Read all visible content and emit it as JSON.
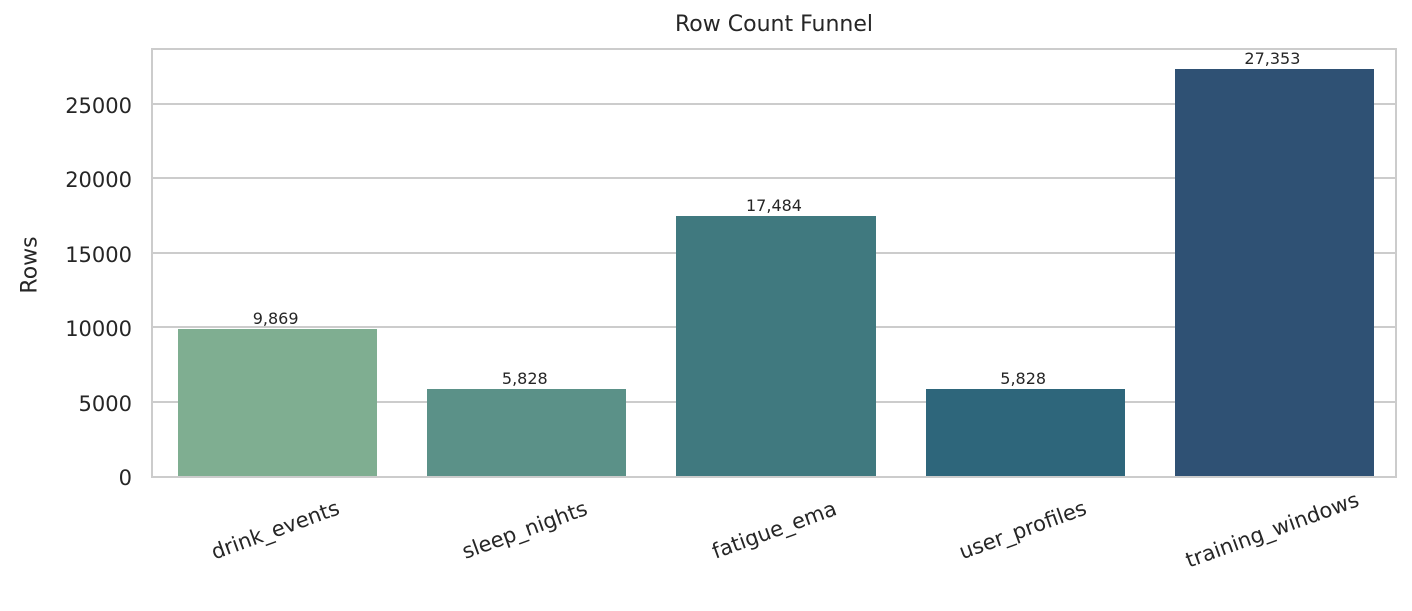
{
  "chart_data": {
    "type": "bar",
    "title": "Row Count Funnel",
    "xlabel": "",
    "ylabel": "Rows",
    "categories": [
      "drink_events",
      "sleep_nights",
      "fatigue_ema",
      "user_profiles",
      "training_windows"
    ],
    "values": [
      9869,
      5828,
      17484,
      5828,
      27353
    ],
    "value_labels": [
      "9,869",
      "5,828",
      "17,484",
      "5,828",
      "27,353"
    ],
    "colors": [
      "#7fae91",
      "#5b9188",
      "#40797f",
      "#2e667b",
      "#2f5174"
    ],
    "ylim": [
      0,
      28740
    ],
    "yticks": [
      0,
      5000,
      10000,
      15000,
      20000,
      25000
    ],
    "ytick_labels": [
      "0",
      "5000",
      "10000",
      "15000",
      "20000",
      "25000"
    ],
    "grid": true,
    "xtick_rotation": -20,
    "legend": null
  }
}
